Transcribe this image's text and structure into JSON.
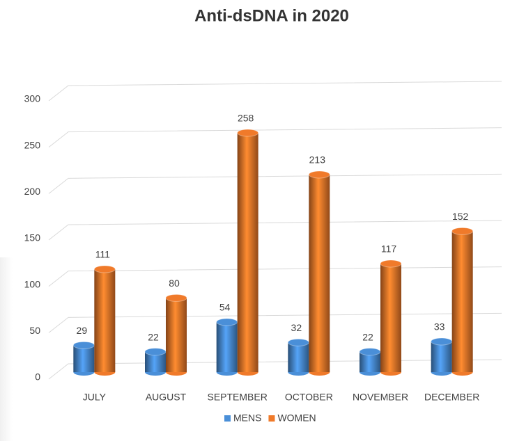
{
  "chart_data": {
    "type": "bar",
    "title": "Anti-dsDNA in 2020",
    "categories": [
      "JULY",
      "AUGUST",
      "SEPTEMBER",
      "OCTOBER",
      "NOVEMBER",
      "DECEMBER"
    ],
    "series": [
      {
        "name": "MENS",
        "color": "#4a8fd8",
        "values": [
          29,
          22,
          54,
          32,
          22,
          33
        ]
      },
      {
        "name": "WOMEN",
        "color": "#f07a2a",
        "values": [
          111,
          80,
          258,
          213,
          117,
          152
        ]
      }
    ],
    "ylim": [
      0,
      300
    ],
    "yticks": [
      0,
      50,
      100,
      150,
      200,
      250,
      300
    ],
    "grid": true,
    "legend": "bottom"
  }
}
